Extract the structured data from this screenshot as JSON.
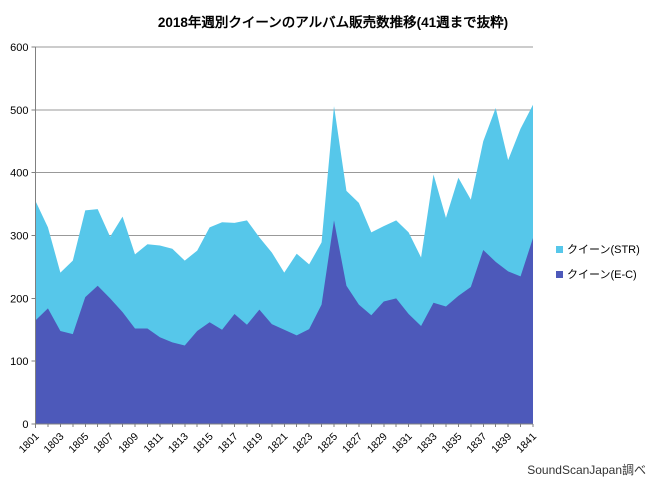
{
  "title": "2018年週別クイーンのアルバム販売数推移(41週まで抜粋)",
  "source": "SoundScanJapan調べ",
  "colors": {
    "str_area": "#56C7EA",
    "ec_area": "#4D59BA",
    "grid": "#999999",
    "axis": "#808080",
    "tick_text": "#000000",
    "background": "#FFFFFF"
  },
  "legend": [
    {
      "label": "クイーン(STR)",
      "color": "#56C7EA"
    },
    {
      "label": "クイーン(E-C)",
      "color": "#4D59BA"
    }
  ],
  "chart_data": {
    "type": "area",
    "stacked": true,
    "title": "2018年週別クイーンのアルバム販売数推移(41週まで抜粋)",
    "x": [
      1801,
      1802,
      1803,
      1804,
      1805,
      1806,
      1807,
      1808,
      1809,
      1810,
      1811,
      1812,
      1813,
      1814,
      1815,
      1816,
      1817,
      1818,
      1819,
      1820,
      1821,
      1822,
      1823,
      1824,
      1825,
      1826,
      1827,
      1828,
      1829,
      1830,
      1831,
      1832,
      1833,
      1834,
      1835,
      1836,
      1837,
      1838,
      1839,
      1840,
      1841
    ],
    "series": [
      {
        "name": "クイーン(E-C)",
        "values": [
          165,
          184,
          148,
          143,
          202,
          220,
          200,
          178,
          152,
          152,
          138,
          130,
          125,
          148,
          162,
          150,
          175,
          158,
          182,
          159,
          150,
          141,
          151,
          190,
          324,
          220,
          190,
          173,
          195,
          200,
          175,
          156,
          193,
          187,
          204,
          218,
          277,
          258,
          243,
          235,
          296
        ]
      },
      {
        "name": "クイーン(STR)",
        "values": [
          190,
          129,
          93,
          117,
          138,
          122,
          98,
          152,
          118,
          134,
          146,
          149,
          135,
          128,
          151,
          171,
          145,
          166,
          115,
          114,
          91,
          130,
          103,
          99,
          182,
          151,
          162,
          132,
          120,
          124,
          130,
          109,
          204,
          141,
          188,
          139,
          173,
          245,
          177,
          235,
          212
        ]
      }
    ],
    "xlabel": "",
    "ylabel": "",
    "ylim": [
      0,
      600
    ],
    "yticks": [
      0,
      100,
      200,
      300,
      400,
      500,
      600
    ],
    "xtick_label_step": 2,
    "grid": true,
    "legend_position": "right"
  }
}
